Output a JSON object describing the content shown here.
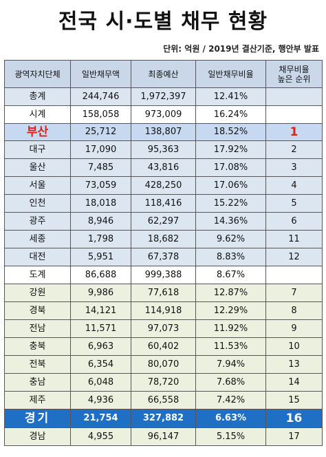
{
  "title": "전국 시·도별 채무 현황",
  "unit_note": "단위: 억원  / 2019년 결산기준, 행안부 발표",
  "headers": [
    "광역자치단체",
    "일반채무액",
    "최종예산",
    "일반채무비율",
    "채무비율\n높은 순위"
  ],
  "rows": [
    {
      "name": "총계",
      "debt": "244,746",
      "budget": "1,972,397",
      "ratio": "12.41%",
      "rank": "",
      "style": "blue"
    },
    {
      "name": "시계",
      "debt": "158,058",
      "budget": "973,009",
      "ratio": "16.24%",
      "rank": "",
      "style": "white"
    },
    {
      "name": "부산",
      "debt": "25,712",
      "budget": "138,807",
      "ratio": "18.52%",
      "rank": "1",
      "style": "busan"
    },
    {
      "name": "대구",
      "debt": "17,090",
      "budget": "95,363",
      "ratio": "17.92%",
      "rank": "2",
      "style": "blue"
    },
    {
      "name": "울산",
      "debt": "7,485",
      "budget": "43,816",
      "ratio": "17.08%",
      "rank": "3",
      "style": "blue"
    },
    {
      "name": "서울",
      "debt": "73,059",
      "budget": "428,250",
      "ratio": "17.06%",
      "rank": "4",
      "style": "blue"
    },
    {
      "name": "인천",
      "debt": "18,018",
      "budget": "118,416",
      "ratio": "15.22%",
      "rank": "5",
      "style": "blue"
    },
    {
      "name": "광주",
      "debt": "8,946",
      "budget": "62,297",
      "ratio": "14.36%",
      "rank": "6",
      "style": "blue"
    },
    {
      "name": "세종",
      "debt": "1,798",
      "budget": "18,682",
      "ratio": "9.62%",
      "rank": "11",
      "style": "blue"
    },
    {
      "name": "대전",
      "debt": "5,951",
      "budget": "67,378",
      "ratio": "8.83%",
      "rank": "12",
      "style": "blue"
    },
    {
      "name": "도계",
      "debt": "86,688",
      "budget": "999,388",
      "ratio": "8.67%",
      "rank": "",
      "style": "white"
    },
    {
      "name": "강원",
      "debt": "9,986",
      "budget": "77,618",
      "ratio": "12.87%",
      "rank": "7",
      "style": "green"
    },
    {
      "name": "경북",
      "debt": "14,121",
      "budget": "114,918",
      "ratio": "12.29%",
      "rank": "8",
      "style": "green"
    },
    {
      "name": "전남",
      "debt": "11,571",
      "budget": "97,073",
      "ratio": "11.92%",
      "rank": "9",
      "style": "green"
    },
    {
      "name": "충북",
      "debt": "6,963",
      "budget": "60,402",
      "ratio": "11.53%",
      "rank": "10",
      "style": "green"
    },
    {
      "name": "전북",
      "debt": "6,354",
      "budget": "80,070",
      "ratio": "7.94%",
      "rank": "13",
      "style": "green"
    },
    {
      "name": "충남",
      "debt": "6,048",
      "budget": "78,720",
      "ratio": "7.68%",
      "rank": "14",
      "style": "green"
    },
    {
      "name": "제주",
      "debt": "4,936",
      "budget": "66,558",
      "ratio": "7.42%",
      "rank": "15",
      "style": "green"
    },
    {
      "name": "경기",
      "debt": "21,754",
      "budget": "327,882",
      "ratio": "6.63%",
      "rank": "16",
      "style": "gyeonggi"
    },
    {
      "name": "경남",
      "debt": "4,955",
      "budget": "96,147",
      "ratio": "5.15%",
      "rank": "17",
      "style": "green"
    }
  ]
}
